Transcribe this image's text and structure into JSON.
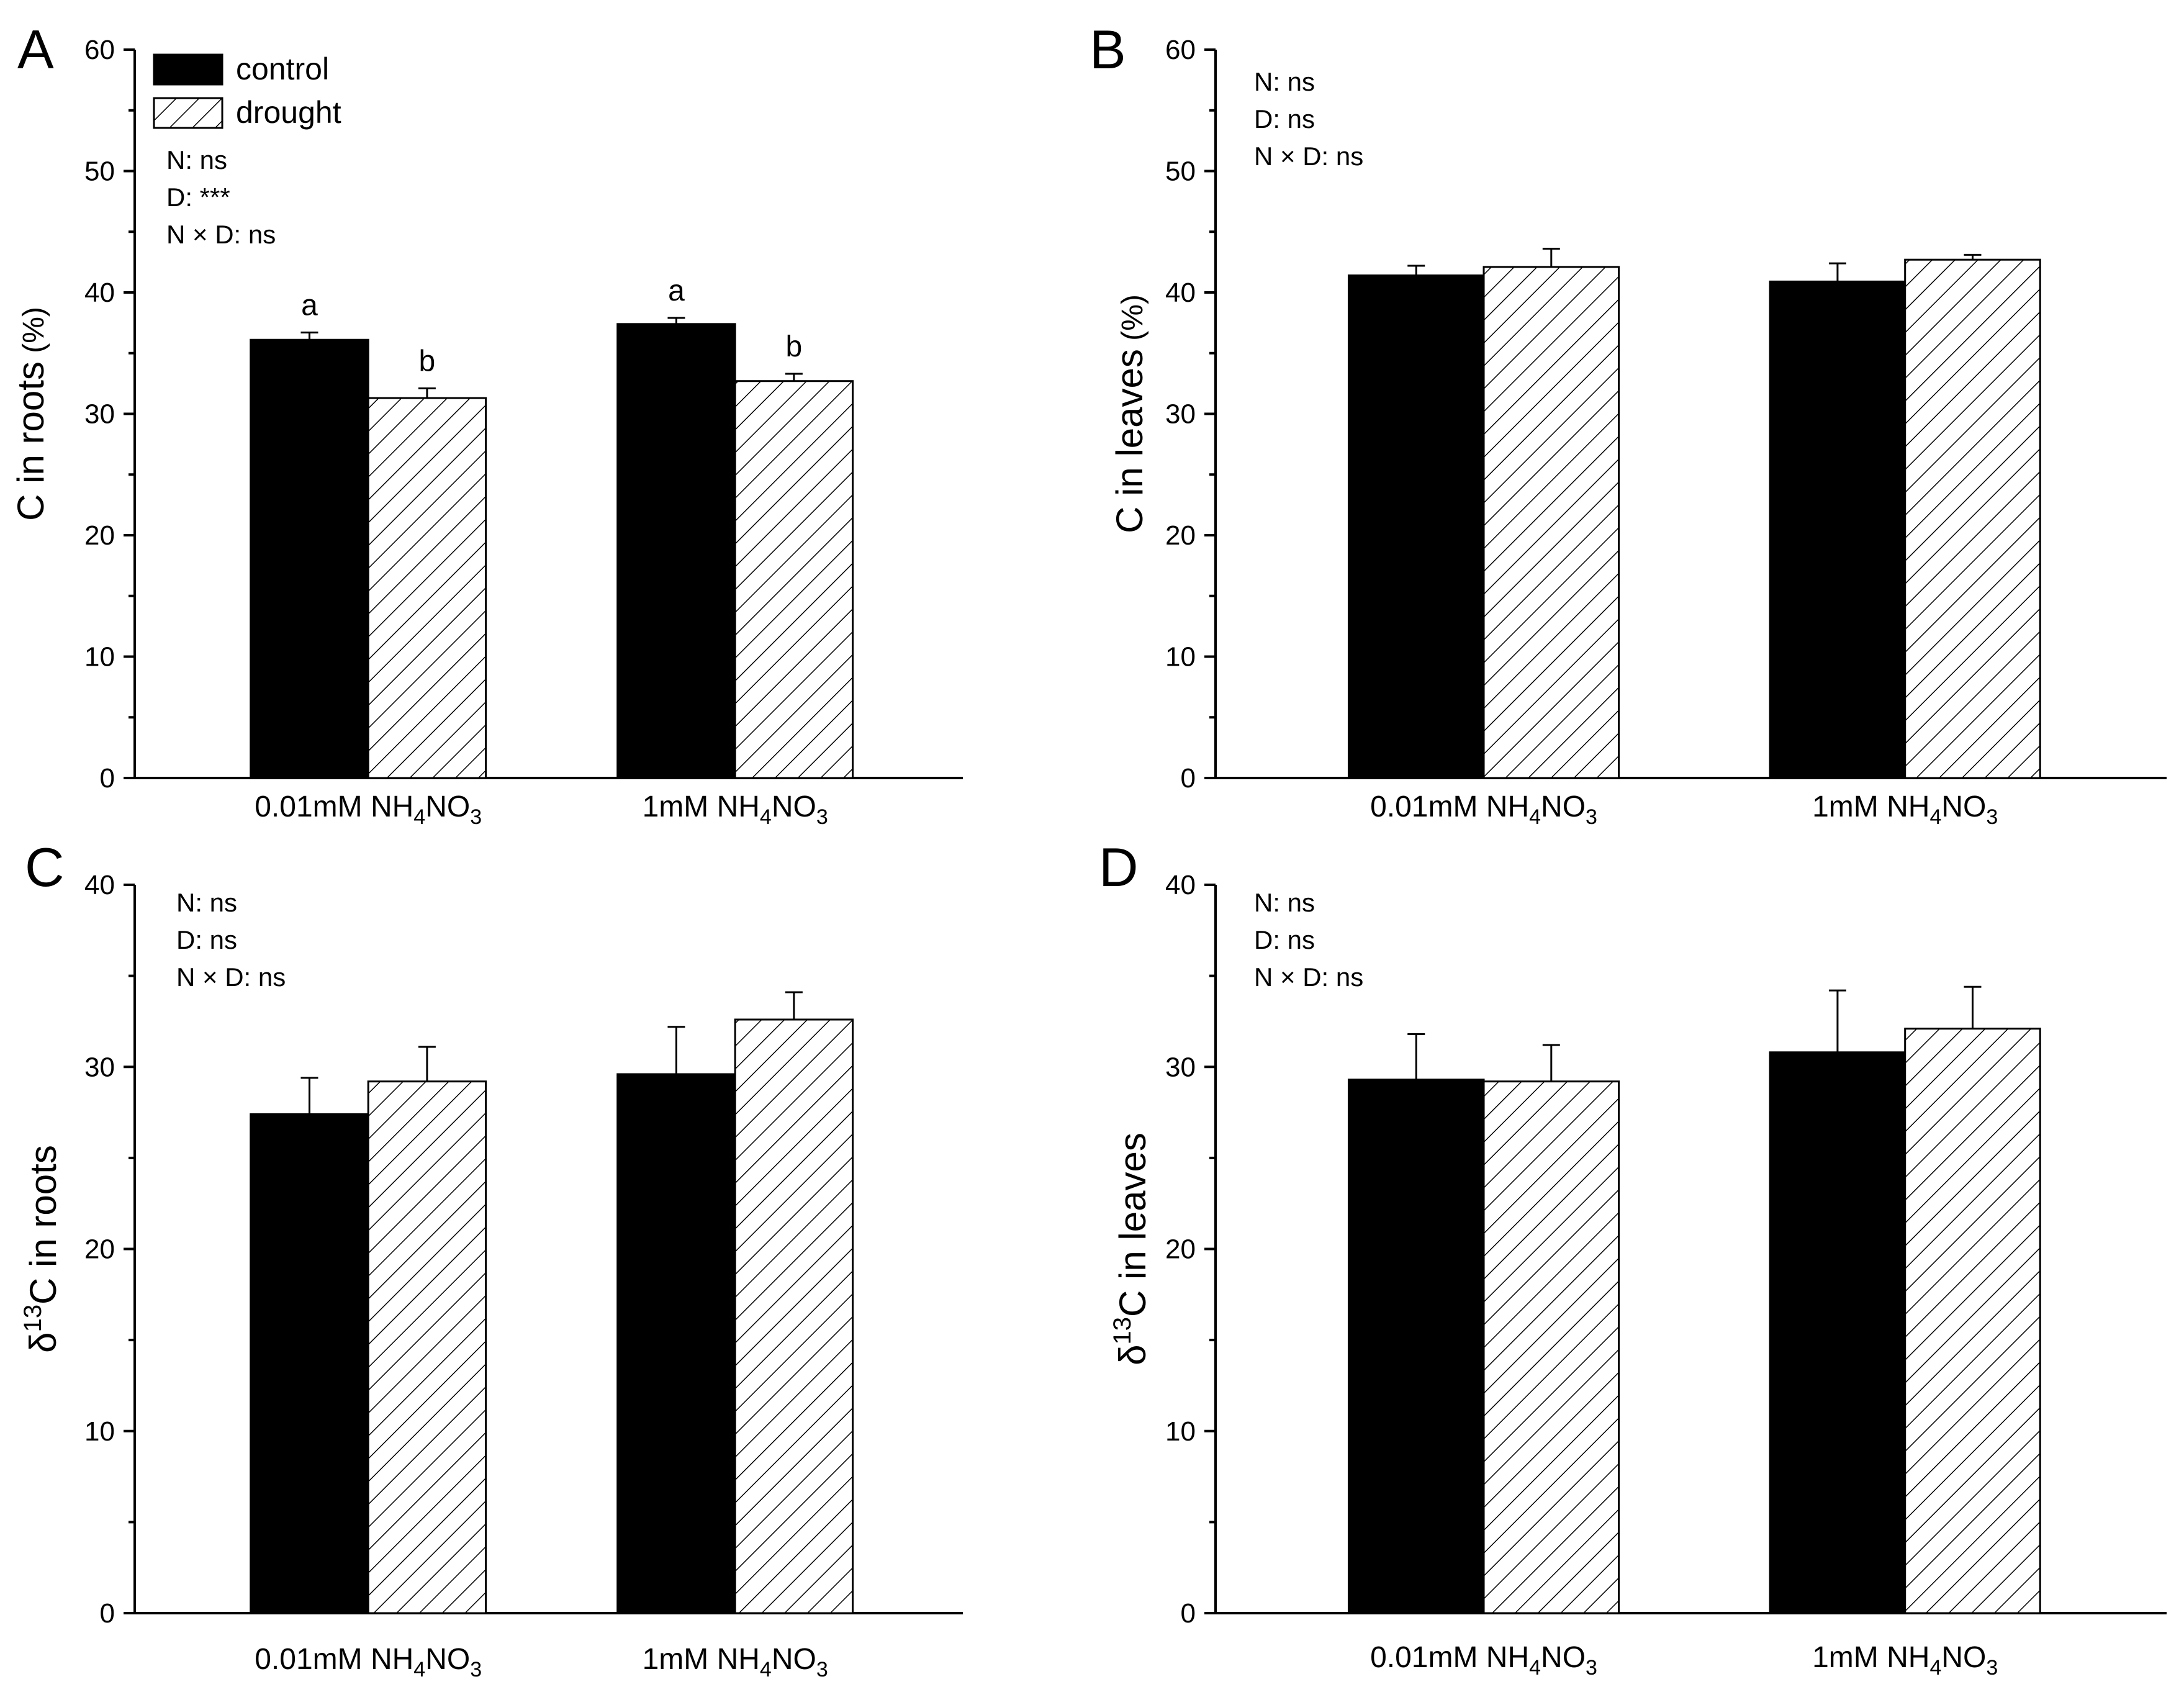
{
  "legend": {
    "control": "control",
    "drought": "drought"
  },
  "colors": {
    "control": "#000000",
    "drought_hatch": "#000000",
    "background": "#ffffff"
  },
  "chart_data": [
    {
      "id": "A",
      "type": "bar",
      "panel_label": "A",
      "ylabel": {
        "main": "C in roots",
        "unit": " (%)"
      },
      "ylim": [
        0,
        60
      ],
      "yticks": [
        0,
        10,
        20,
        30,
        40,
        50,
        60
      ],
      "categories": [
        {
          "main": "0.01mM NH",
          "sub1": "4",
          "mid": "NO",
          "sub2": "3"
        },
        {
          "main": "1mM NH",
          "sub1": "4",
          "mid": "NO",
          "sub2": "3"
        }
      ],
      "series": [
        {
          "name": "control",
          "values": [
            36.1,
            37.4
          ],
          "errors": [
            0.6,
            0.5
          ],
          "sig": [
            "a",
            "a"
          ]
        },
        {
          "name": "drought",
          "values": [
            31.3,
            32.7
          ],
          "errors": [
            0.8,
            0.6
          ],
          "sig": [
            "b",
            "b"
          ]
        }
      ],
      "stats": [
        "N: ns",
        "D: ***",
        "N × D: ns"
      ],
      "legend_shown": true
    },
    {
      "id": "B",
      "type": "bar",
      "panel_label": "B",
      "ylabel": {
        "main": "C in leaves",
        "unit": " (%)"
      },
      "ylim": [
        0,
        60
      ],
      "yticks": [
        0,
        10,
        20,
        30,
        40,
        50,
        60
      ],
      "categories": [
        {
          "main": "0.01mM NH",
          "sub1": "4",
          "mid": "NO",
          "sub2": "3"
        },
        {
          "main": "1mM NH",
          "sub1": "4",
          "mid": "NO",
          "sub2": "3"
        }
      ],
      "series": [
        {
          "name": "control",
          "values": [
            41.4,
            40.9
          ],
          "errors": [
            0.8,
            1.5
          ],
          "sig": []
        },
        {
          "name": "drought",
          "values": [
            42.1,
            42.7
          ],
          "errors": [
            1.5,
            0.4
          ],
          "sig": []
        }
      ],
      "stats": [
        "N: ns",
        "D: ns",
        "N × D: ns"
      ],
      "legend_shown": false
    },
    {
      "id": "C",
      "type": "bar",
      "panel_label": "C",
      "ylabel": {
        "pre": "δ",
        "sup": "13",
        "main": "C in roots"
      },
      "ylim": [
        0,
        40
      ],
      "yticks": [
        0,
        10,
        20,
        30,
        40
      ],
      "categories": [
        {
          "main": "0.01mM NH",
          "sub1": "4",
          "mid": "NO",
          "sub2": "3"
        },
        {
          "main": "1mM NH",
          "sub1": "4",
          "mid": "NO",
          "sub2": "3"
        }
      ],
      "series": [
        {
          "name": "control",
          "values": [
            27.4,
            29.6
          ],
          "errors": [
            2.0,
            2.6
          ],
          "sig": []
        },
        {
          "name": "drought",
          "values": [
            29.2,
            32.6
          ],
          "errors": [
            1.9,
            1.5
          ],
          "sig": []
        }
      ],
      "stats": [
        "N: ns",
        "D: ns",
        "N × D: ns"
      ],
      "legend_shown": false
    },
    {
      "id": "D",
      "type": "bar",
      "panel_label": "D",
      "ylabel": {
        "pre": "δ",
        "sup": "13",
        "main": "C in leaves"
      },
      "ylim": [
        0,
        40
      ],
      "yticks": [
        0,
        10,
        20,
        30,
        40
      ],
      "categories": [
        {
          "main": "0.01mM NH",
          "sub1": "4",
          "mid": "NO",
          "sub2": "3"
        },
        {
          "main": "1mM NH",
          "sub1": "4",
          "mid": "NO",
          "sub2": "3"
        }
      ],
      "series": [
        {
          "name": "control",
          "values": [
            29.3,
            30.8
          ],
          "errors": [
            2.5,
            3.4
          ],
          "sig": []
        },
        {
          "name": "drought",
          "values": [
            29.2,
            32.1
          ],
          "errors": [
            2.0,
            2.3
          ],
          "sig": []
        }
      ],
      "stats": [
        "N: ns",
        "D: ns",
        "N × D: ns"
      ],
      "legend_shown": false
    }
  ]
}
